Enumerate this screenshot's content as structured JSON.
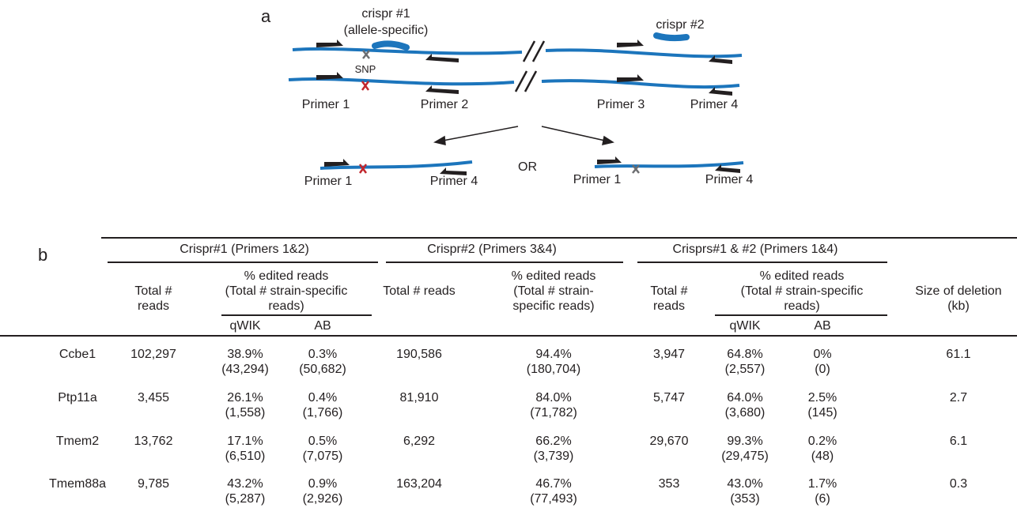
{
  "panel_a": {
    "label": "a",
    "crispr1": [
      "crispr #1",
      "(allele-specific)"
    ],
    "crispr2": "crispr #2",
    "snp": "SNP",
    "primers": [
      "Primer 1",
      "Primer 2",
      "Primer 3",
      "Primer 4"
    ],
    "or_label": "OR",
    "colors": {
      "dna": "#1c75bc",
      "primer": "#231f20",
      "snp_red": "#c1272d",
      "snp_gray": "#6d6e71"
    }
  },
  "panel_b": {
    "label": "b",
    "groups": [
      "Crispr#1 (Primers 1&2)",
      "Crispr#2 (Primers 3&4)",
      "Crisprs#1 & #2 (Primers 1&4)"
    ],
    "col_total_reads": [
      "Total #",
      "reads"
    ],
    "col_total_reads_single": "Total # reads",
    "col_edited_3line": [
      "% edited reads",
      "(Total # strain-specific",
      "reads)"
    ],
    "col_edited_c2": [
      "% edited reads",
      "(Total # strain-",
      "specific reads)"
    ],
    "col_deletion": [
      "Size of deletion",
      "(kb)"
    ],
    "sub_qwik": "qWIK",
    "sub_ab": "AB",
    "rows": [
      {
        "gene": "Ccbe1",
        "c1_total": "102,297",
        "c1_q": [
          "38.9%",
          "(43,294)"
        ],
        "c1_ab": [
          "0.3%",
          "(50,682)"
        ],
        "c2_total": "190,586",
        "c2_pct": [
          "94.4%",
          "(180,704)"
        ],
        "c3_total": "3,947",
        "c3_q": [
          "64.8%",
          "(2,557)"
        ],
        "c3_ab": [
          "0%",
          "(0)"
        ],
        "size": "61.1"
      },
      {
        "gene": "Ptp11a",
        "c1_total": "3,455",
        "c1_q": [
          "26.1%",
          "(1,558)"
        ],
        "c1_ab": [
          "0.4%",
          "(1,766)"
        ],
        "c2_total": "81,910",
        "c2_pct": [
          "84.0%",
          "(71,782)"
        ],
        "c3_total": "5,747",
        "c3_q": [
          "64.0%",
          "(3,680)"
        ],
        "c3_ab": [
          "2.5%",
          "(145)"
        ],
        "size": "2.7"
      },
      {
        "gene": "Tmem2",
        "c1_total": "13,762",
        "c1_q": [
          "17.1%",
          "(6,510)"
        ],
        "c1_ab": [
          "0.5%",
          "(7,075)"
        ],
        "c2_total": "6,292",
        "c2_pct": [
          "66.2%",
          "(3,739)"
        ],
        "c3_total": "29,670",
        "c3_q": [
          "99.3%",
          "(29,475)"
        ],
        "c3_ab": [
          "0.2%",
          "(48)"
        ],
        "size": "6.1"
      },
      {
        "gene": "Tmem88a",
        "c1_total": "9,785",
        "c1_q": [
          "43.2%",
          "(5,287)"
        ],
        "c1_ab": [
          "0.9%",
          "(2,926)"
        ],
        "c2_total": "163,204",
        "c2_pct": [
          "46.7%",
          "(77,493)"
        ],
        "c3_total": "353",
        "c3_q": [
          "43.0%",
          "(353)"
        ],
        "c3_ab": [
          "1.7%",
          "(6)"
        ],
        "size": "0.3"
      }
    ]
  }
}
